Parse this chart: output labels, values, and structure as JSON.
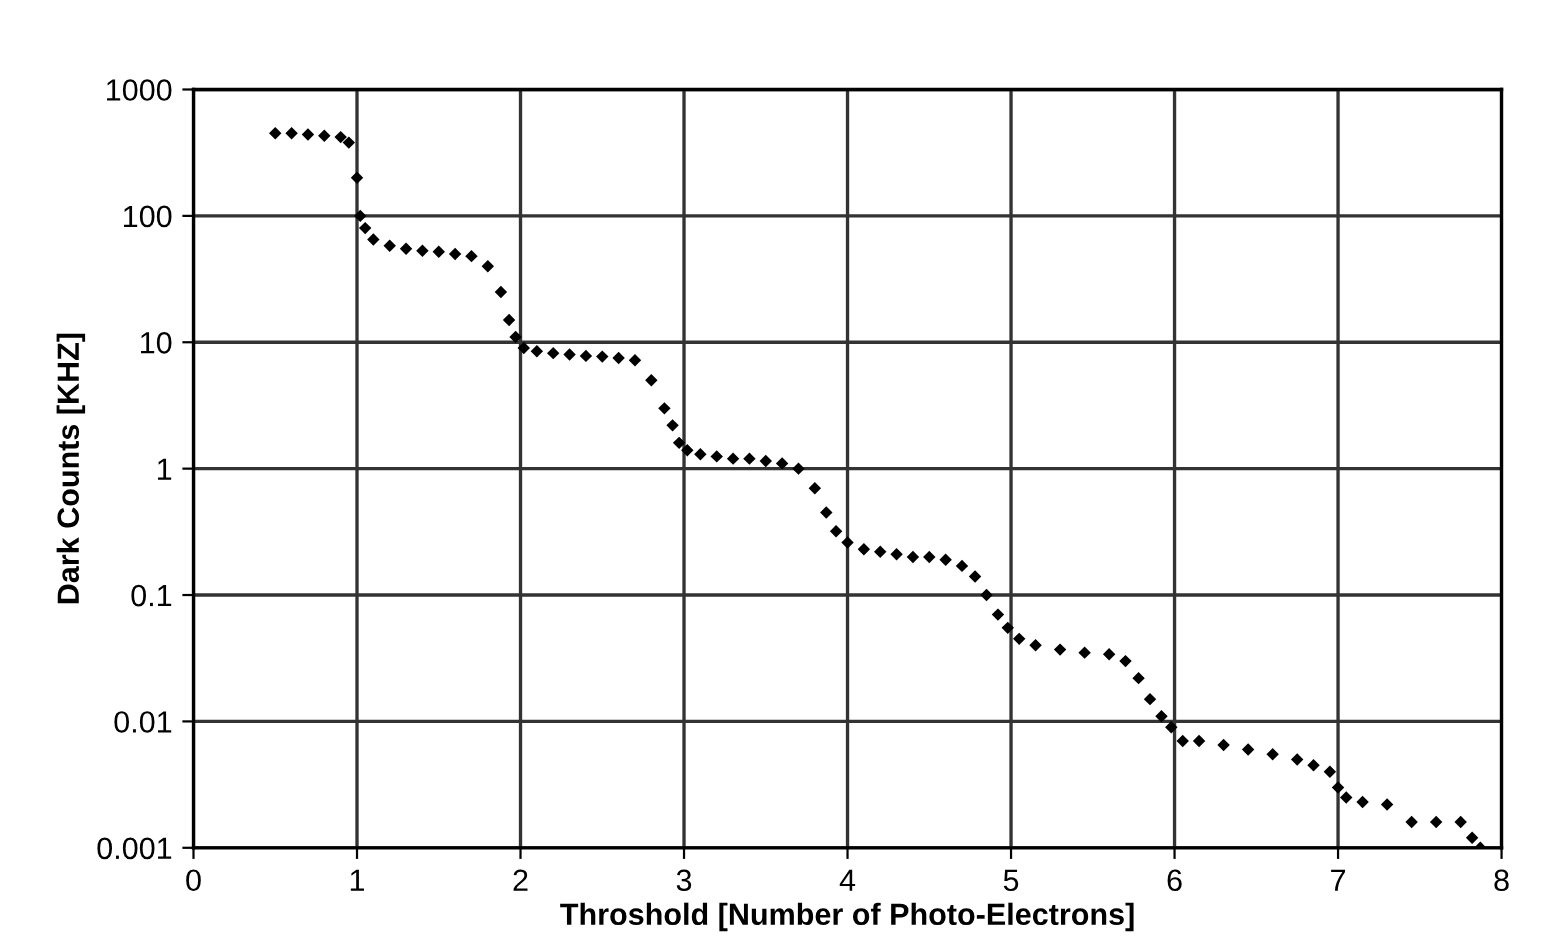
{
  "chart_data": {
    "type": "scatter",
    "xlabel": "Throshold [Number of Photo-Electrons]",
    "ylabel": "Dark Counts [KHZ]",
    "log": "y",
    "grid": true,
    "marker": "diamond",
    "xlim": [
      0,
      8
    ],
    "xticks": [
      0,
      1,
      2,
      3,
      4,
      5,
      6,
      7,
      8
    ],
    "ylim": [
      0.001,
      1000
    ],
    "yticks": [
      {
        "value": 0.001,
        "label": "0.001"
      },
      {
        "value": 0.01,
        "label": "0.01"
      },
      {
        "value": 0.1,
        "label": "0.1"
      },
      {
        "value": 1,
        "label": "1"
      },
      {
        "value": 10,
        "label": "10"
      },
      {
        "value": 100,
        "label": "100"
      },
      {
        "value": 1000,
        "label": "1000"
      }
    ],
    "series": [
      {
        "color": "#000000",
        "x": [
          0.5,
          0.6,
          0.7,
          0.8,
          0.9,
          0.95,
          1.0,
          1.02,
          1.05,
          1.1,
          1.2,
          1.3,
          1.4,
          1.5,
          1.6,
          1.7,
          1.8,
          1.88,
          1.93,
          1.97,
          2.02,
          2.1,
          2.2,
          2.3,
          2.4,
          2.5,
          2.6,
          2.7,
          2.8,
          2.88,
          2.93,
          2.97,
          3.02,
          3.1,
          3.2,
          3.3,
          3.4,
          3.5,
          3.6,
          3.7,
          3.8,
          3.87,
          3.93,
          4.0,
          4.1,
          4.2,
          4.3,
          4.4,
          4.5,
          4.6,
          4.7,
          4.78,
          4.85,
          4.92,
          4.98,
          5.05,
          5.15,
          5.3,
          5.45,
          5.6,
          5.7,
          5.78,
          5.85,
          5.92,
          5.98,
          6.05,
          6.15,
          6.3,
          6.45,
          6.6,
          6.75,
          6.85,
          6.95,
          7.0,
          7.05,
          7.15,
          7.3,
          7.45,
          7.6,
          7.75,
          7.82,
          7.87
        ],
        "values": [
          450,
          450,
          440,
          430,
          420,
          380,
          200,
          100,
          80,
          65,
          58,
          55,
          53,
          52,
          50,
          48,
          40,
          25,
          15,
          11,
          9,
          8.5,
          8.2,
          8,
          7.8,
          7.7,
          7.5,
          7.2,
          5,
          3,
          2.2,
          1.6,
          1.4,
          1.3,
          1.25,
          1.2,
          1.2,
          1.15,
          1.1,
          1.0,
          0.7,
          0.45,
          0.32,
          0.26,
          0.23,
          0.22,
          0.21,
          0.2,
          0.2,
          0.19,
          0.17,
          0.14,
          0.1,
          0.07,
          0.055,
          0.045,
          0.04,
          0.037,
          0.035,
          0.034,
          0.03,
          0.022,
          0.015,
          0.011,
          0.009,
          0.007,
          0.007,
          0.0065,
          0.006,
          0.0055,
          0.005,
          0.0045,
          0.004,
          0.003,
          0.0025,
          0.0023,
          0.0022,
          0.0016,
          0.0016,
          0.0016,
          0.0012,
          0.001
        ]
      }
    ]
  }
}
